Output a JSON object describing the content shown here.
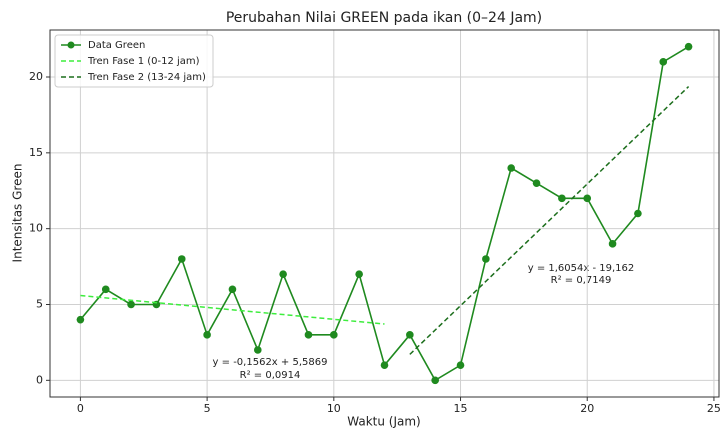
{
  "chart_data": {
    "type": "line",
    "title": "Perubahan Nilai GREEN pada ikan (0–24 Jam)",
    "xlabel": "Waktu (Jam)",
    "ylabel": "Intensitas Green",
    "xlim": [
      -1.2,
      25.2
    ],
    "ylim": [
      -1.1,
      23.1
    ],
    "xticks": [
      0,
      5,
      10,
      15,
      20,
      25
    ],
    "yticks": [
      0,
      5,
      10,
      15,
      20
    ],
    "grid": true,
    "legend": "upper left",
    "series": [
      {
        "name": "Data Green",
        "color": "#1f8a1f",
        "linestyle": "solid",
        "marker": "o",
        "x": [
          0,
          1,
          2,
          3,
          4,
          5,
          6,
          7,
          8,
          9,
          10,
          11,
          12,
          13,
          14,
          15,
          16,
          17,
          18,
          19,
          20,
          21,
          22,
          23,
          24
        ],
        "values": [
          4,
          6,
          5,
          5,
          8,
          3,
          6,
          2,
          7,
          3,
          3,
          7,
          1,
          3,
          0,
          1,
          8,
          14,
          13,
          12,
          12,
          9,
          11,
          21,
          22
        ]
      },
      {
        "name": "Tren Fase 1 (0-12 jam)",
        "color": "#3ded3d",
        "linestyle": "dashed",
        "marker": "none",
        "x": [
          0,
          12
        ],
        "values": [
          5.59,
          3.71
        ]
      },
      {
        "name": "Tren Fase 2 (13-24 jam)",
        "color": "#1c6e1c",
        "linestyle": "dashed",
        "marker": "none",
        "x": [
          13,
          24
        ],
        "values": [
          1.71,
          19.37
        ]
      }
    ],
    "annotations": [
      "y = -0,1562x + 5,5869",
      "R² = 0,0914",
      "y = 1,6054x - 19,162",
      "R² = 0,7149"
    ]
  }
}
